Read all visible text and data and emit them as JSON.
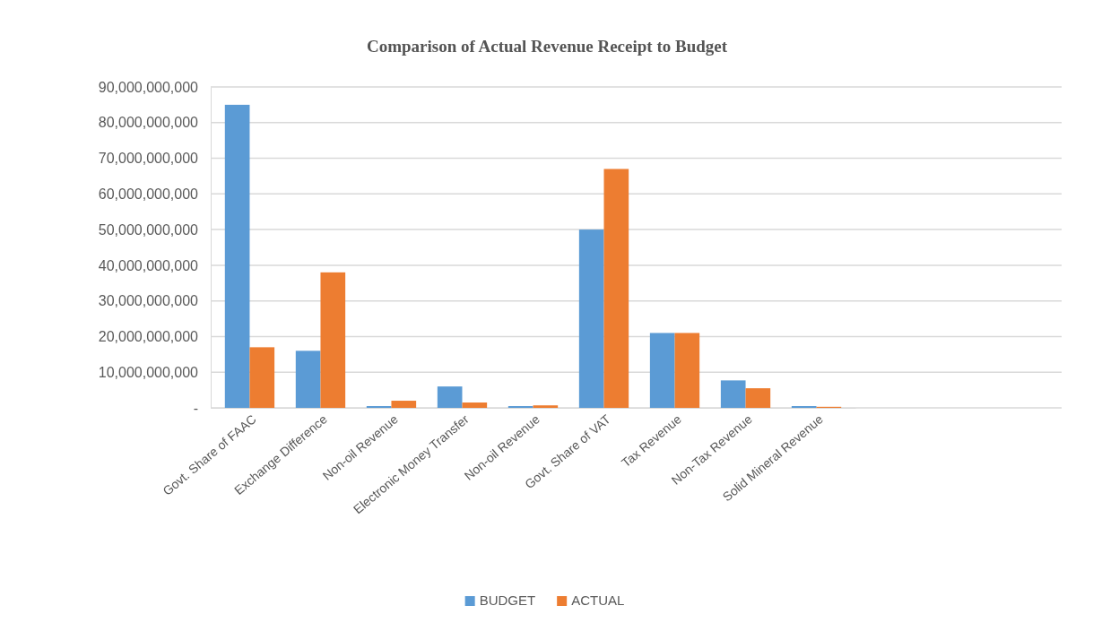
{
  "chart_data": {
    "type": "bar",
    "title": "Comparison of Actual Revenue Receipt to Budget",
    "categories": [
      "Govt. Share of FAAC",
      "Exchange Difference",
      "Non-oil Revenue",
      "Electronic Money Transfer",
      "Non-oil Revenue",
      "Govt. Share of VAT",
      "Tax Revenue",
      "Non-Tax Revenue",
      "Solid Mineral Revenue"
    ],
    "series": [
      {
        "name": "BUDGET",
        "color": "#5b9bd5",
        "values": [
          85000000000,
          16000000000,
          500000000,
          6000000000,
          500000000,
          50000000000,
          21000000000,
          7700000000,
          500000000
        ]
      },
      {
        "name": "ACTUAL",
        "color": "#ed7d31",
        "values": [
          17000000000,
          38000000000,
          2000000000,
          1500000000,
          700000000,
          67000000000,
          21000000000,
          5500000000,
          300000000
        ]
      }
    ],
    "ylim": [
      0,
      90000000000
    ],
    "yticks": [
      {
        "value": 0,
        "label": "-"
      },
      {
        "value": 10000000000,
        "label": "10,000,000,000"
      },
      {
        "value": 20000000000,
        "label": "20,000,000,000"
      },
      {
        "value": 30000000000,
        "label": "30,000,000,000"
      },
      {
        "value": 40000000000,
        "label": "40,000,000,000"
      },
      {
        "value": 50000000000,
        "label": "50,000,000,000"
      },
      {
        "value": 60000000000,
        "label": "60,000,000,000"
      },
      {
        "value": 70000000000,
        "label": "70,000,000,000"
      },
      {
        "value": 80000000000,
        "label": "80,000,000,000"
      },
      {
        "value": 90000000000,
        "label": "90,000,000,000"
      }
    ],
    "grid": "y",
    "legend": "bottom"
  }
}
